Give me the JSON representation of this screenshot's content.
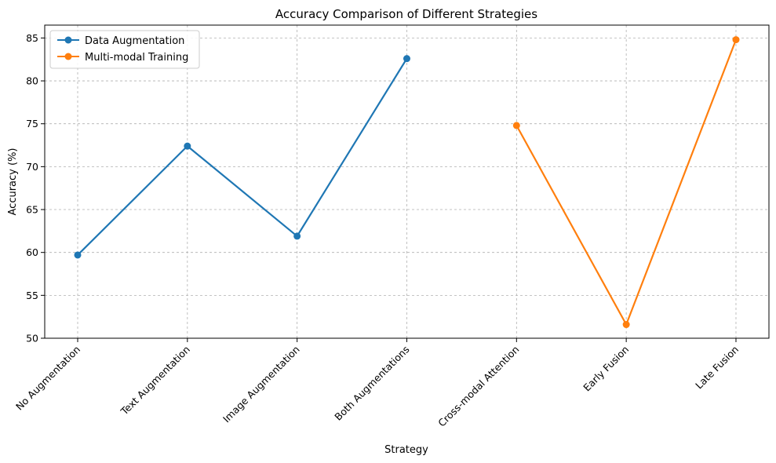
{
  "chart_data": {
    "type": "line",
    "title": "Accuracy Comparison of Different Strategies",
    "xlabel": "Strategy",
    "ylabel": "Accuracy (%)",
    "categories": [
      "No Augmentation",
      "Text Augmentation",
      "Image Augmentation",
      "Both Augmentations",
      "Cross-modal Attention",
      "Early Fusion",
      "Late Fusion"
    ],
    "ylim": [
      50,
      86.5
    ],
    "yticks": [
      50,
      55,
      60,
      65,
      70,
      75,
      80,
      85
    ],
    "grid": true,
    "legend_position": "top-left",
    "series": [
      {
        "name": "Data Augmentation",
        "color": "#1f77b4",
        "points": [
          {
            "category": "No Augmentation",
            "value": 59.7
          },
          {
            "category": "Text Augmentation",
            "value": 72.4
          },
          {
            "category": "Image Augmentation",
            "value": 61.9
          },
          {
            "category": "Both Augmentations",
            "value": 82.6
          }
        ]
      },
      {
        "name": "Multi-modal Training",
        "color": "#ff7f0e",
        "points": [
          {
            "category": "Cross-modal Attention",
            "value": 74.8
          },
          {
            "category": "Early Fusion",
            "value": 51.6
          },
          {
            "category": "Late Fusion",
            "value": 84.8
          }
        ]
      }
    ]
  }
}
